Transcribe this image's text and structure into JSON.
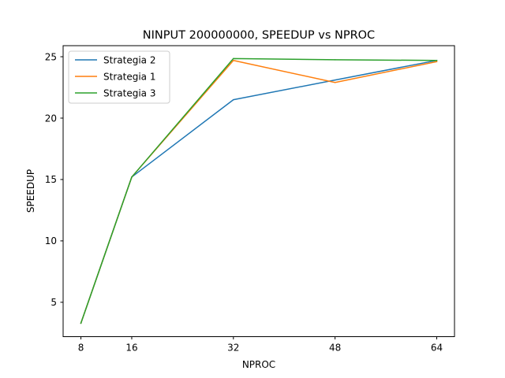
{
  "chart_data": {
    "type": "line",
    "title": "NINPUT 200000000, SPEEDUP vs NPROC",
    "xlabel": "NPROC",
    "ylabel": "SPEEDUP",
    "x": [
      8,
      16,
      32,
      48,
      64
    ],
    "xticks": [
      "8",
      "16",
      "32",
      "48",
      "64"
    ],
    "yticks": [
      "5",
      "10",
      "15",
      "20",
      "25"
    ],
    "xlim": [
      5.2,
      66.8
    ],
    "ylim": [
      2.2,
      25.9
    ],
    "grid": false,
    "legend_position": "upper left",
    "series": [
      {
        "name": "Strategia 2",
        "color": "#1f77b4",
        "values": [
          3.3,
          15.2,
          21.5,
          23.1,
          24.7
        ]
      },
      {
        "name": "Strategia 1",
        "color": "#ff7f0e",
        "values": [
          3.3,
          15.2,
          24.7,
          22.9,
          24.6
        ]
      },
      {
        "name": "Strategia 3",
        "color": "#2ca02c",
        "values": [
          3.3,
          15.2,
          24.85,
          24.75,
          24.7
        ]
      }
    ]
  }
}
